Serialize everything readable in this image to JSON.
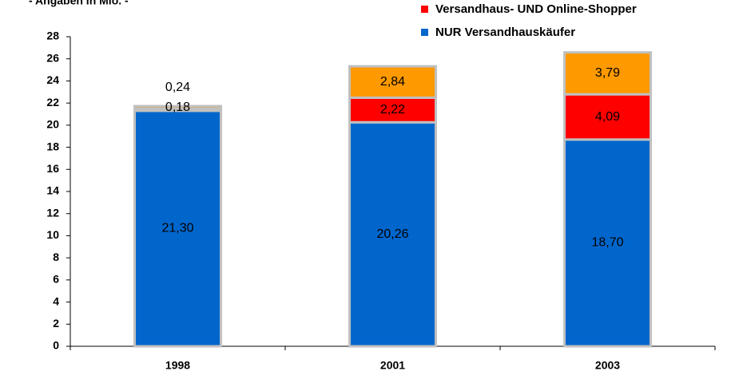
{
  "chart_data": {
    "type": "stacked-bar",
    "subtitle": "- Angaben in Mio. -",
    "categories": [
      "1998",
      "2001",
      "2003"
    ],
    "series": [
      {
        "name": "NUR Versandhauskäufer",
        "color": "#0066cc",
        "values": [
          21.3,
          20.26,
          18.7
        ],
        "value_labels": [
          "21,30",
          "20,26",
          "18,70"
        ]
      },
      {
        "name": "Versandhaus- UND Online-Shopper",
        "color": "#ff0000",
        "values": [
          0.18,
          2.22,
          4.09
        ],
        "value_labels": [
          "0,18",
          "2,22",
          "4,09"
        ]
      },
      {
        "color": "#ff9900",
        "values": [
          0.24,
          2.84,
          3.79
        ],
        "value_labels": [
          "0,24",
          "2,84",
          "3,79"
        ]
      }
    ],
    "ylim": [
      0,
      28
    ],
    "yticks": [
      0,
      2,
      4,
      6,
      8,
      10,
      12,
      14,
      16,
      18,
      20,
      22,
      24,
      26,
      28
    ]
  }
}
